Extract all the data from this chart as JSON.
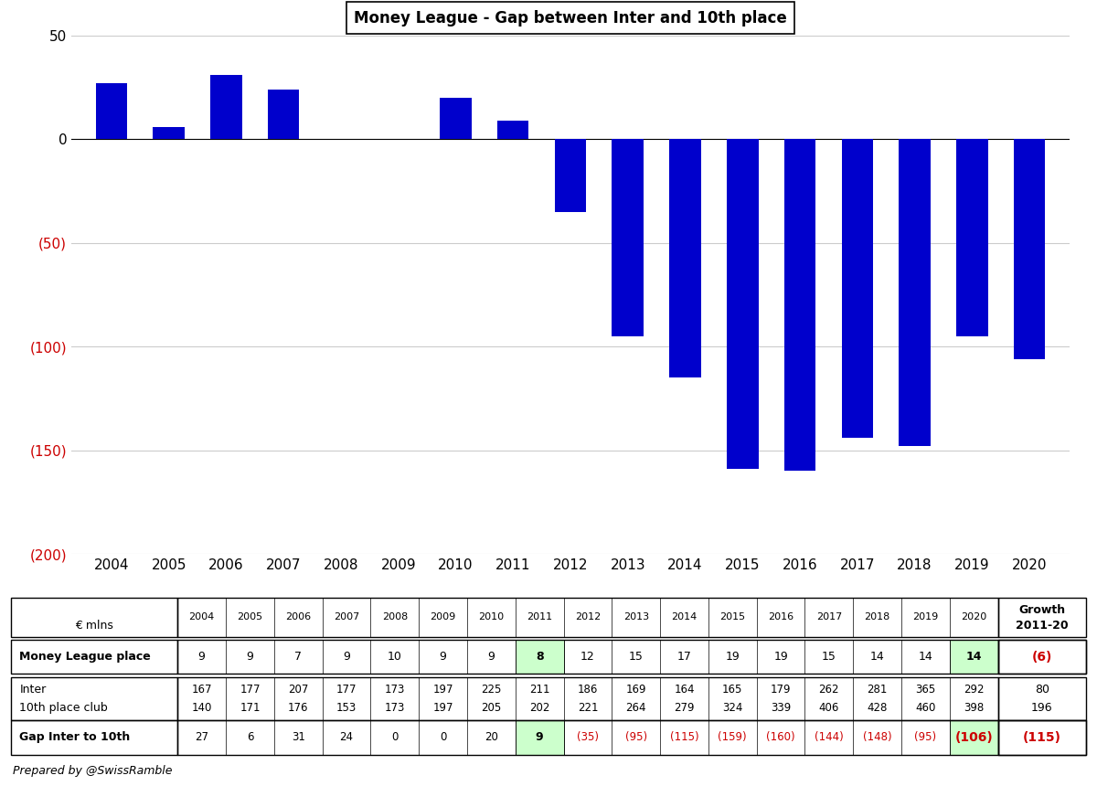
{
  "title": "Money League - Gap between Inter and 10th place",
  "years": [
    2004,
    2005,
    2006,
    2007,
    2008,
    2009,
    2010,
    2011,
    2012,
    2013,
    2014,
    2015,
    2016,
    2017,
    2018,
    2019,
    2020
  ],
  "gap_values": [
    27,
    6,
    31,
    24,
    0,
    0,
    20,
    9,
    -35,
    -95,
    -115,
    -159,
    -160,
    -144,
    -148,
    -95,
    -106
  ],
  "bar_color": "#0000cc",
  "ylim": [
    -200,
    50
  ],
  "yticks": [
    50,
    0,
    -50,
    -100,
    -150,
    -200
  ],
  "money_league_place": [
    9,
    9,
    7,
    9,
    10,
    9,
    9,
    8,
    12,
    15,
    17,
    19,
    19,
    15,
    14,
    14,
    14
  ],
  "inter_revenue": [
    167,
    177,
    207,
    177,
    173,
    197,
    225,
    211,
    186,
    169,
    164,
    165,
    179,
    262,
    281,
    365,
    292
  ],
  "tenth_revenue": [
    140,
    171,
    176,
    153,
    173,
    197,
    205,
    202,
    221,
    264,
    279,
    324,
    339,
    406,
    428,
    460,
    398
  ],
  "growth_place": "(6)",
  "growth_inter": "80",
  "growth_tenth": "196",
  "growth_gap": "(115)",
  "highlight_2011_idx": 7,
  "highlight_2020_idx": 16,
  "bg_color": "#ffffff",
  "red_color": "#cc0000",
  "green_highlight": "#ccffcc",
  "subtitle": "Prepared by @SwissRamble"
}
